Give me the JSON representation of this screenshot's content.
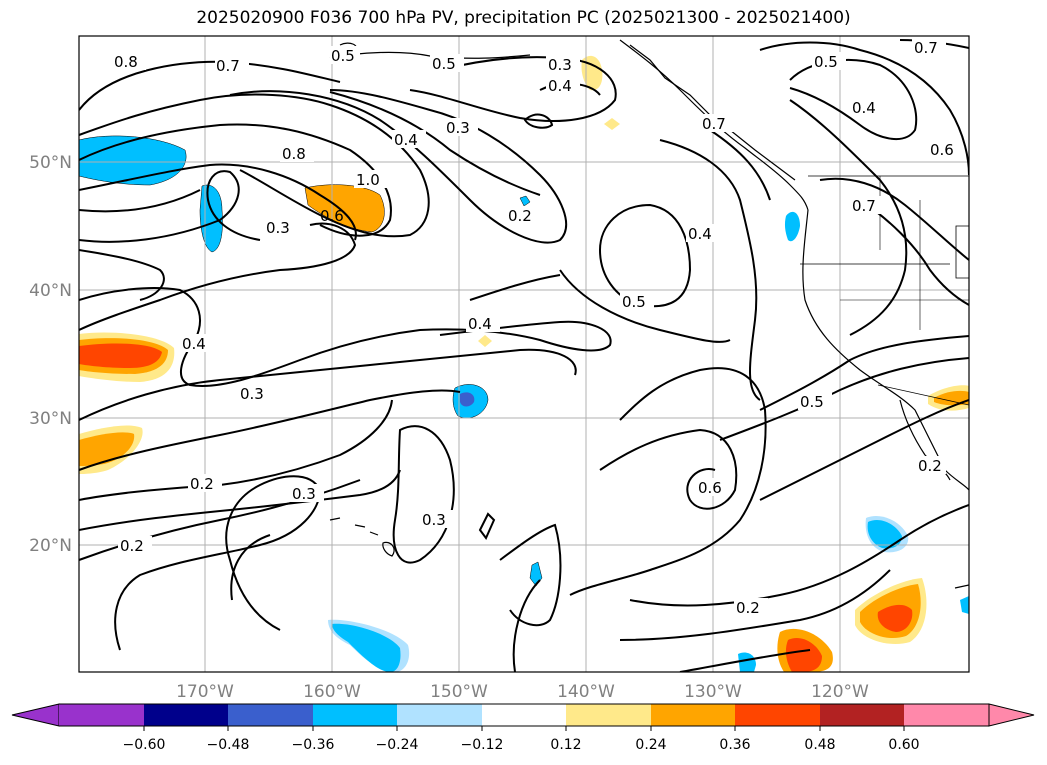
{
  "title": "2025020900 F036 700 hPa PV, precipitation PC (2025021300 - 2025021400)",
  "map": {
    "lat_labels": [
      "50°N",
      "40°N",
      "30°N",
      "20°N"
    ],
    "lon_labels": [
      "170°W",
      "160°W",
      "150°W",
      "140°W",
      "130°W",
      "120°W"
    ],
    "contour_labels": [
      "0.8",
      "0.7",
      "0.5",
      "0.5",
      "0.3",
      "0.4",
      "0.7",
      "0.5",
      "0.4",
      "0.6",
      "0.8",
      "1.0",
      "0.6",
      "0.3",
      "0.4",
      "0.3",
      "0.2",
      "0.7",
      "0.7",
      "0.4",
      "0.5",
      "0.4",
      "0.4",
      "0.3",
      "0.2",
      "0.3",
      "0.2",
      "0.6",
      "0.5",
      "0.3",
      "0.2",
      "0.2"
    ]
  },
  "colorbar": {
    "ticks": [
      "−0.60",
      "−0.48",
      "−0.36",
      "−0.24",
      "−0.12",
      "0.12",
      "0.24",
      "0.36",
      "0.48",
      "0.60"
    ],
    "colors": [
      "#9932cc",
      "#00008b",
      "#3a5fcd",
      "#00bfff",
      "#b0e2ff",
      "#ffffff",
      "#ffe98a",
      "#ffa500",
      "#ff4500",
      "#b22222",
      "#ff88aa"
    ]
  }
}
